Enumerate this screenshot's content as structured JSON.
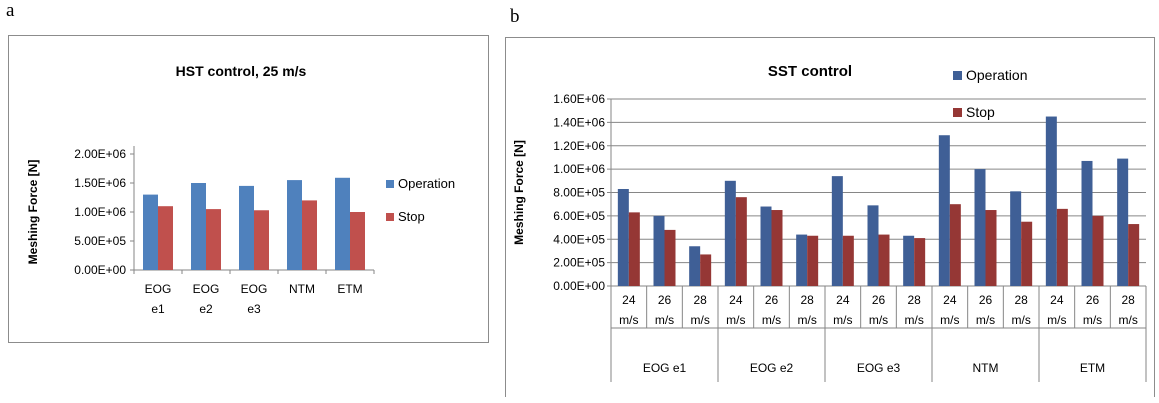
{
  "panels": {
    "a_label": "a",
    "b_label": "b"
  },
  "colors": {
    "a_operation": "#4f81bd",
    "a_stop": "#c0504d",
    "b_operation": "#3f5f96",
    "b_stop": "#953735",
    "axis": "#868686",
    "grid": "#868686"
  },
  "chart_data": [
    {
      "type": "bar",
      "title": "HST control, 25 m/s",
      "ylabel": "Meshing Force [N]",
      "xlabel": "",
      "ylim": [
        0,
        2000000
      ],
      "yticks": [
        0,
        500000,
        1000000,
        1500000,
        2000000
      ],
      "ytick_labels": [
        "0.00E+00",
        "5.00E+05",
        "1.00E+06",
        "1.50E+06",
        "2.00E+06"
      ],
      "grid": false,
      "legend_position": "right",
      "categories": [
        [
          "EOG",
          "e1"
        ],
        [
          "EOG",
          "e2"
        ],
        [
          "EOG",
          "e3"
        ],
        [
          "NTM"
        ],
        [
          "ETM"
        ]
      ],
      "series": [
        {
          "name": "Operation",
          "values": [
            1300000,
            1500000,
            1450000,
            1550000,
            1590000
          ]
        },
        {
          "name": "Stop",
          "values": [
            1100000,
            1050000,
            1030000,
            1200000,
            1000000
          ]
        }
      ]
    },
    {
      "type": "bar",
      "title": "SST control",
      "ylabel": "Meshing Force [N]",
      "xlabel": "",
      "ylim": [
        0,
        1600000
      ],
      "yticks": [
        0,
        200000,
        400000,
        600000,
        800000,
        1000000,
        1200000,
        1400000,
        1600000
      ],
      "ytick_labels": [
        "0.00E+00",
        "2.00E+05",
        "4.00E+05",
        "6.00E+05",
        "8.00E+05",
        "1.00E+06",
        "1.20E+06",
        "1.40E+06",
        "1.60E+06"
      ],
      "grid": true,
      "legend_position": "top-right",
      "groups": [
        "EOG e1",
        "EOG e2",
        "EOG e3",
        "NTM",
        "ETM"
      ],
      "subcategories": [
        [
          "24",
          "m/s"
        ],
        [
          "26",
          "m/s"
        ],
        [
          "28",
          "m/s"
        ]
      ],
      "series": [
        {
          "name": "Operation",
          "values": [
            830000,
            600000,
            340000,
            900000,
            680000,
            440000,
            940000,
            690000,
            430000,
            1290000,
            1000000,
            810000,
            1450000,
            1070000,
            1090000
          ]
        },
        {
          "name": "Stop",
          "values": [
            630000,
            480000,
            270000,
            760000,
            650000,
            430000,
            430000,
            440000,
            410000,
            700000,
            650000,
            550000,
            660000,
            600000,
            530000
          ]
        }
      ]
    }
  ]
}
